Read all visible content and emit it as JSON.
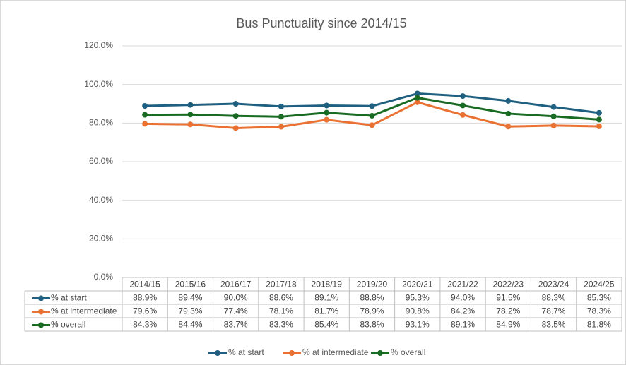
{
  "chart_data": {
    "type": "line",
    "title": "Bus Punctuality since 2014/15",
    "categories": [
      "2014/15",
      "2015/16",
      "2016/17",
      "2017/18",
      "2018/19",
      "2019/20",
      "2020/21",
      "2021/22",
      "2022/23",
      "2023/24",
      "2024/25"
    ],
    "series": [
      {
        "name": "% at start",
        "color": "#1f5f80",
        "values": [
          88.9,
          89.4,
          90.0,
          88.6,
          89.1,
          88.8,
          95.3,
          94.0,
          91.5,
          88.3,
          85.3
        ],
        "value_labels": [
          "88.9%",
          "89.4%",
          "90.0%",
          "88.6%",
          "89.1%",
          "88.8%",
          "95.3%",
          "94.0%",
          "91.5%",
          "88.3%",
          "85.3%"
        ]
      },
      {
        "name": "% at intermediate",
        "color": "#e97132",
        "values": [
          79.6,
          79.3,
          77.4,
          78.1,
          81.7,
          78.9,
          90.8,
          84.2,
          78.2,
          78.7,
          78.3
        ],
        "value_labels": [
          "79.6%",
          "79.3%",
          "77.4%",
          "78.1%",
          "81.7%",
          "78.9%",
          "90.8%",
          "84.2%",
          "78.2%",
          "78.7%",
          "78.3%"
        ]
      },
      {
        "name": "% overall",
        "color": "#196b24",
        "values": [
          84.3,
          84.4,
          83.7,
          83.3,
          85.4,
          83.8,
          93.1,
          89.1,
          84.9,
          83.5,
          81.8
        ],
        "value_labels": [
          "84.3%",
          "84.4%",
          "83.7%",
          "83.3%",
          "85.4%",
          "83.8%",
          "93.1%",
          "89.1%",
          "84.9%",
          "83.5%",
          "81.8%"
        ]
      }
    ],
    "ylim": [
      0,
      120
    ],
    "yticks": [
      {
        "value": 0,
        "label": "0.0%"
      },
      {
        "value": 20,
        "label": "20.0%"
      },
      {
        "value": 40,
        "label": "40.0%"
      },
      {
        "value": 60,
        "label": "60.0%"
      },
      {
        "value": 80,
        "label": "80.0%"
      },
      {
        "value": 100,
        "label": "100.0%"
      },
      {
        "value": 120,
        "label": "120.0%"
      }
    ],
    "grid": true,
    "legend": "bottom"
  }
}
